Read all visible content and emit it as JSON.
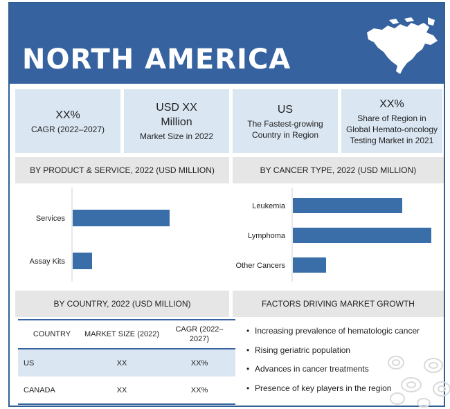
{
  "banner": {
    "title": "NORTH AMERICA"
  },
  "stats": [
    {
      "big": "XX%",
      "small": "CAGR (2022–2027)"
    },
    {
      "big": "USD XX Million",
      "small": "Market Size in 2022"
    },
    {
      "big": "US",
      "small": "The Fastest-growing Country in Region"
    },
    {
      "big": "XX%",
      "small": "Share of Region in Global Hemato-oncology Testing Market in 2021"
    }
  ],
  "sections": {
    "product": "BY PRODUCT & SERVICE, 2022 (USD MILLION)",
    "cancer": "BY CANCER TYPE, 2022 (USD MILLION)",
    "country": "BY COUNTRY, 2022 (USD MILLION)",
    "factors": "FACTORS DRIVING MARKET GROWTH"
  },
  "chart_data": [
    {
      "type": "bar",
      "orientation": "horizontal",
      "title": "BY PRODUCT & SERVICE, 2022 (USD MILLION)",
      "categories": [
        "Services",
        "Assay Kits"
      ],
      "values": [
        100,
        20
      ],
      "color": "#3a6ea8"
    },
    {
      "type": "bar",
      "orientation": "horizontal",
      "title": "BY CANCER TYPE, 2022 (USD MILLION)",
      "categories": [
        "Leukemia",
        "Lymphoma",
        "Other Cancers"
      ],
      "values": [
        79,
        100,
        24
      ],
      "color": "#3a6ea8"
    }
  ],
  "country_table": {
    "headers": [
      "COUNTRY",
      "MARKET SIZE (2022)",
      "CAGR (2022–2027)"
    ],
    "rows": [
      [
        "US",
        "XX",
        "XX%"
      ],
      [
        "CANADA",
        "XX",
        "XX%"
      ]
    ]
  },
  "factors": [
    "Increasing prevalence of hematologic cancer",
    "Rising geriatric population",
    "Advances in cancer treatments",
    "Presence of key players in the region"
  ],
  "colors": {
    "banner": "#3663a0",
    "bar": "#3a6ea8",
    "stat_bg": "#dae6f2",
    "section_bg": "#e6e6e6"
  },
  "icons": [
    "north-america-map-icon",
    "blood-cells-icon"
  ]
}
